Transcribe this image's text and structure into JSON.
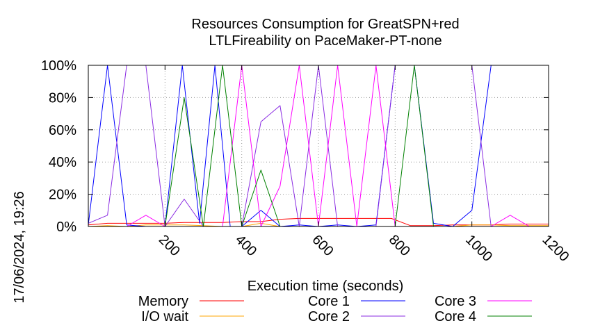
{
  "chart_data": {
    "type": "line",
    "title": "Resources Consumption for GreatSPN+red",
    "subtitle": "LTLFireability on PaceMaker-PT-none",
    "xlabel": "Execution time (seconds)",
    "ylabel": "",
    "side_label": "17/06/2024, 19:26",
    "xlim": [
      0,
      1200
    ],
    "ylim": [
      0,
      100
    ],
    "x_ticks": [
      200,
      400,
      600,
      800,
      1000,
      1200
    ],
    "x_tick_labels": [
      "200",
      "400",
      "600",
      "800",
      "1000",
      "1200"
    ],
    "y_ticks": [
      0,
      20,
      40,
      60,
      80,
      100
    ],
    "y_tick_labels": [
      "0%",
      "20%",
      "40%",
      "60%",
      "80%",
      "100%"
    ],
    "grid": true,
    "legend_position": "bottom",
    "series": [
      {
        "name": "Memory",
        "color": "#ff0000",
        "points": [
          [
            0,
            1
          ],
          [
            50,
            2
          ],
          [
            100,
            2
          ],
          [
            150,
            2
          ],
          [
            200,
            2
          ],
          [
            250,
            2.5
          ],
          [
            300,
            2.5
          ],
          [
            350,
            2.5
          ],
          [
            400,
            3
          ],
          [
            450,
            3
          ],
          [
            500,
            4.5
          ],
          [
            550,
            5
          ],
          [
            600,
            5
          ],
          [
            650,
            5
          ],
          [
            700,
            5
          ],
          [
            750,
            5
          ],
          [
            790,
            5
          ],
          [
            840,
            0.5
          ],
          [
            900,
            0.5
          ],
          [
            950,
            1
          ],
          [
            1000,
            1
          ],
          [
            1050,
            1
          ],
          [
            1100,
            1.5
          ],
          [
            1150,
            1.5
          ],
          [
            1200,
            1.5
          ]
        ]
      },
      {
        "name": "I/O wait",
        "color": "#ffa500",
        "points": [
          [
            0,
            0
          ],
          [
            50,
            0.5
          ],
          [
            100,
            0
          ],
          [
            150,
            1
          ],
          [
            200,
            1
          ],
          [
            250,
            1
          ],
          [
            300,
            0.5
          ],
          [
            350,
            0
          ],
          [
            400,
            0
          ],
          [
            450,
            2
          ],
          [
            500,
            0
          ],
          [
            550,
            0
          ],
          [
            600,
            0
          ],
          [
            650,
            0
          ],
          [
            700,
            0
          ],
          [
            750,
            0
          ],
          [
            800,
            0
          ],
          [
            850,
            0
          ],
          [
            900,
            0
          ],
          [
            950,
            0
          ],
          [
            1000,
            1
          ],
          [
            1050,
            1
          ],
          [
            1100,
            0.5
          ],
          [
            1150,
            0.5
          ],
          [
            1200,
            0.5
          ]
        ]
      },
      {
        "name": "Core 1",
        "color": "#0000ff",
        "points": [
          [
            0,
            1
          ],
          [
            50,
            100
          ],
          [
            100,
            1
          ],
          [
            150,
            0
          ],
          [
            200,
            0
          ],
          [
            245,
            100
          ],
          [
            290,
            2
          ],
          [
            330,
            100
          ],
          [
            370,
            0
          ],
          [
            400,
            0
          ],
          [
            450,
            10
          ],
          [
            500,
            0
          ],
          [
            550,
            1
          ],
          [
            600,
            0
          ],
          [
            650,
            1
          ],
          [
            700,
            0
          ],
          [
            750,
            1
          ],
          [
            800,
            100
          ],
          [
            850,
            100
          ],
          [
            900,
            2
          ],
          [
            950,
            0
          ],
          [
            1000,
            10
          ],
          [
            1050,
            100
          ],
          [
            1100,
            100
          ],
          [
            1150,
            100
          ],
          [
            1200,
            100
          ]
        ]
      },
      {
        "name": "Core 2",
        "color": "#8a2be2",
        "points": [
          [
            0,
            2
          ],
          [
            50,
            7
          ],
          [
            100,
            100
          ],
          [
            150,
            100
          ],
          [
            200,
            0
          ],
          [
            250,
            17
          ],
          [
            300,
            0
          ],
          [
            350,
            0
          ],
          [
            400,
            0
          ],
          [
            450,
            65
          ],
          [
            500,
            75
          ],
          [
            550,
            0
          ],
          [
            600,
            100
          ],
          [
            650,
            0
          ],
          [
            700,
            0
          ],
          [
            750,
            0
          ],
          [
            800,
            100
          ],
          [
            850,
            100
          ],
          [
            900,
            100
          ],
          [
            950,
            100
          ],
          [
            1000,
            100
          ],
          [
            1050,
            0
          ],
          [
            1100,
            0
          ],
          [
            1150,
            0
          ],
          [
            1200,
            0
          ]
        ]
      },
      {
        "name": "Core 3",
        "color": "#ff00ff",
        "points": [
          [
            0,
            0
          ],
          [
            50,
            0
          ],
          [
            100,
            0
          ],
          [
            150,
            7
          ],
          [
            200,
            0
          ],
          [
            250,
            0
          ],
          [
            300,
            0
          ],
          [
            350,
            0
          ],
          [
            400,
            100
          ],
          [
            450,
            0
          ],
          [
            500,
            25
          ],
          [
            550,
            100
          ],
          [
            600,
            0
          ],
          [
            650,
            100
          ],
          [
            700,
            0
          ],
          [
            750,
            100
          ],
          [
            800,
            0
          ],
          [
            850,
            0
          ],
          [
            900,
            0
          ],
          [
            950,
            0
          ],
          [
            1000,
            0
          ],
          [
            1050,
            0
          ],
          [
            1100,
            7
          ],
          [
            1150,
            0
          ],
          [
            1200,
            0
          ]
        ]
      },
      {
        "name": "Core 4",
        "color": "#008000",
        "points": [
          [
            0,
            0
          ],
          [
            50,
            0
          ],
          [
            100,
            0
          ],
          [
            150,
            0
          ],
          [
            200,
            0
          ],
          [
            250,
            80
          ],
          [
            300,
            0
          ],
          [
            350,
            100
          ],
          [
            400,
            0
          ],
          [
            450,
            35
          ],
          [
            500,
            0
          ],
          [
            550,
            0
          ],
          [
            600,
            0
          ],
          [
            650,
            0
          ],
          [
            700,
            0
          ],
          [
            750,
            0
          ],
          [
            800,
            0
          ],
          [
            850,
            100
          ],
          [
            900,
            0
          ],
          [
            950,
            0
          ],
          [
            1000,
            0
          ],
          [
            1050,
            0
          ],
          [
            1100,
            0
          ],
          [
            1150,
            0
          ],
          [
            1200,
            0
          ]
        ]
      }
    ]
  }
}
